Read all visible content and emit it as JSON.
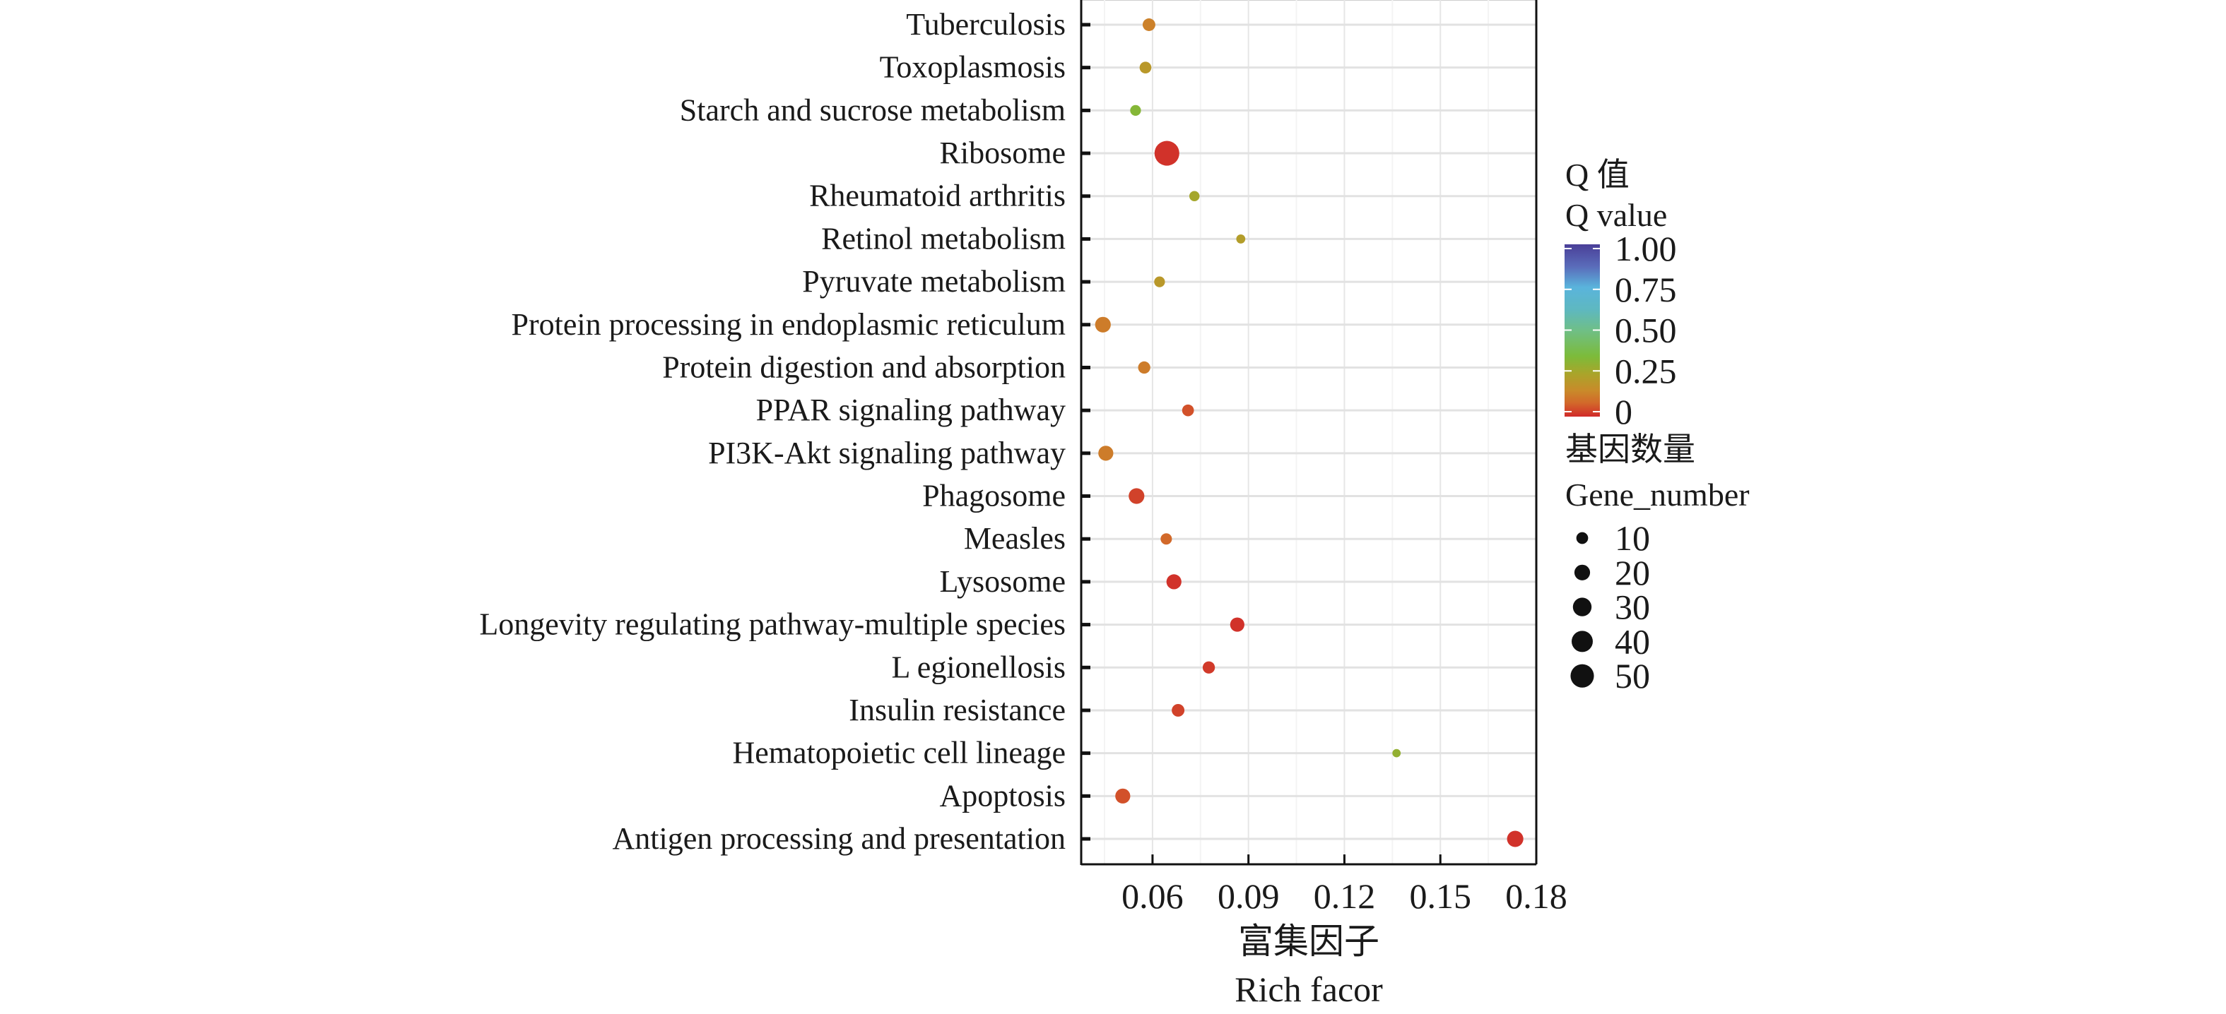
{
  "chart_data": {
    "type": "scatter",
    "subtype": "bubble",
    "title": "",
    "xlabel_cn": "富集因子",
    "xlabel_en": "Rich facor",
    "ylabel": "",
    "xlim": [
      0.0377,
      0.18
    ],
    "x_ticks": [
      0.06,
      0.09,
      0.12,
      0.15,
      0.18
    ],
    "x_tick_labels": [
      "0.06",
      "0.09",
      "0.12",
      "0.15",
      "0.18"
    ],
    "grid": true,
    "categories": [
      "Tuberculosis",
      "Toxoplasmosis",
      "Starch and sucrose metabolism",
      "Ribosome",
      "Rheumatoid arthritis",
      "Retinol metabolism",
      "Pyruvate metabolism",
      "Protein processing in endoplasmic reticulum",
      "Protein digestion and absorption",
      "PPAR signaling pathway",
      "PI3K-Akt signaling pathway",
      "Phagosome",
      "Measles",
      "Lysosome",
      "Longevity regulating pathway-multiple species",
      "L egionellosis",
      "Insulin resistance",
      "Hematopoietic cell lineage",
      "Apoptosis",
      "Antigen processing and presentation"
    ],
    "points": [
      {
        "category": "Tuberculosis",
        "rich_factor": 0.0589,
        "gene_number": 12,
        "q_value": 0.13
      },
      {
        "category": "Toxoplasmosis",
        "rich_factor": 0.0578,
        "gene_number": 10,
        "q_value": 0.2
      },
      {
        "category": "Starch and sucrose metabolism",
        "rich_factor": 0.0547,
        "gene_number": 8,
        "q_value": 0.33
      },
      {
        "category": "Ribosome",
        "rich_factor": 0.0645,
        "gene_number": 57,
        "q_value": 0.01
      },
      {
        "category": "Rheumatoid arthritis",
        "rich_factor": 0.0731,
        "gene_number": 7,
        "q_value": 0.26
      },
      {
        "category": "Retinol metabolism",
        "rich_factor": 0.0876,
        "gene_number": 5,
        "q_value": 0.22
      },
      {
        "category": "Pyruvate metabolism",
        "rich_factor": 0.0622,
        "gene_number": 8,
        "q_value": 0.2
      },
      {
        "category": "Protein processing in endoplasmic reticulum",
        "rich_factor": 0.0445,
        "gene_number": 20,
        "q_value": 0.12
      },
      {
        "category": "Protein digestion and absorption",
        "rich_factor": 0.0574,
        "gene_number": 11,
        "q_value": 0.12
      },
      {
        "category": "PPAR signaling pathway",
        "rich_factor": 0.0711,
        "gene_number": 10,
        "q_value": 0.05
      },
      {
        "category": "PI3K-Akt signaling pathway",
        "rich_factor": 0.0454,
        "gene_number": 18,
        "q_value": 0.12
      },
      {
        "category": "Phagosome",
        "rich_factor": 0.055,
        "gene_number": 20,
        "q_value": 0.03
      },
      {
        "category": "Measles",
        "rich_factor": 0.0643,
        "gene_number": 9,
        "q_value": 0.08
      },
      {
        "category": "Lysosome",
        "rich_factor": 0.0667,
        "gene_number": 18,
        "q_value": 0.01
      },
      {
        "category": "Longevity regulating pathway-multiple species",
        "rich_factor": 0.0865,
        "gene_number": 16,
        "q_value": 0.01
      },
      {
        "category": "L egionellosis",
        "rich_factor": 0.0776,
        "gene_number": 11,
        "q_value": 0.02
      },
      {
        "category": "Insulin resistance",
        "rich_factor": 0.068,
        "gene_number": 12,
        "q_value": 0.03
      },
      {
        "category": "Hematopoietic cell lineage",
        "rich_factor": 0.1363,
        "gene_number": 4,
        "q_value": 0.3
      },
      {
        "category": "Apoptosis",
        "rich_factor": 0.0507,
        "gene_number": 18,
        "q_value": 0.05
      },
      {
        "category": "Antigen processing and presentation",
        "rich_factor": 0.1734,
        "gene_number": 22,
        "q_value": 0.01
      }
    ],
    "color_legend": {
      "title_cn": "Q 值",
      "title_en": "Q value",
      "ticks": [
        1.0,
        0.75,
        0.5,
        0.25,
        0
      ],
      "tick_labels": [
        "1.00",
        "0.75",
        "0.50",
        "0.25",
        "0"
      ],
      "colormap": [
        {
          "q": 0.0,
          "color": "#d12a2a"
        },
        {
          "q": 0.08,
          "color": "#d2692a"
        },
        {
          "q": 0.15,
          "color": "#c98a2a"
        },
        {
          "q": 0.25,
          "color": "#a9a52a"
        },
        {
          "q": 0.35,
          "color": "#7cbb3a"
        },
        {
          "q": 0.5,
          "color": "#6fbf86"
        },
        {
          "q": 0.62,
          "color": "#5eb8c0"
        },
        {
          "q": 0.75,
          "color": "#5ab4dc"
        },
        {
          "q": 0.87,
          "color": "#5a6cba"
        },
        {
          "q": 1.0,
          "color": "#4a3f98"
        }
      ]
    },
    "size_legend": {
      "title_cn": "基因数量",
      "title_en": "Gene_number",
      "values": [
        10,
        20,
        30,
        40,
        50
      ],
      "labels": [
        "10",
        "20",
        "30",
        "40",
        "50"
      ]
    }
  }
}
